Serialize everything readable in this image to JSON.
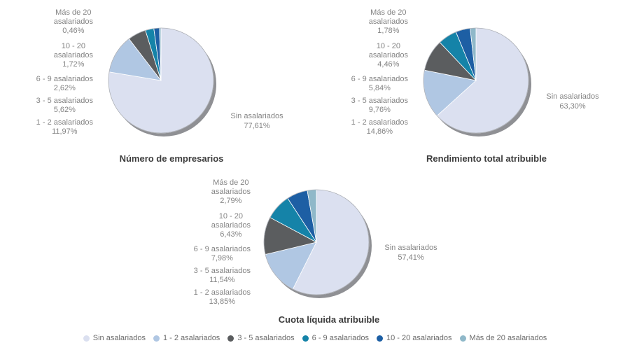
{
  "slice_colors": [
    "#dbe0f0",
    "#b0c7e3",
    "#5b5d5f",
    "#1583a8",
    "#1d5fa4",
    "#8fb8c9"
  ],
  "shadow_color": "#8f9094",
  "legend": {
    "position": "bottom-center",
    "items": [
      {
        "label": "Sin asalariados",
        "color": "#dbe0f0"
      },
      {
        "label": "1 - 2 asalariados",
        "color": "#b0c7e3"
      },
      {
        "label": "3 - 5 asalariados",
        "color": "#5b5d5f"
      },
      {
        "label": "6 - 9 asalariados",
        "color": "#1583a8"
      },
      {
        "label": "10 - 20 asalariados",
        "color": "#1d5fa4"
      },
      {
        "label": "Más de 20 asalariados",
        "color": "#8fb8c9"
      }
    ]
  },
  "chart_data": [
    {
      "type": "pie",
      "title": "Número de empresarios",
      "start_angle_deg": 0,
      "direction": "clockwise",
      "categories": [
        "Sin asalariados",
        "1 - 2 asalariados",
        "3 - 5 asalariados",
        "6 - 9 asalariados",
        "10 - 20 asalariados",
        "Más de 20 asalariados"
      ],
      "values": [
        77.61,
        11.97,
        5.62,
        2.62,
        1.72,
        0.46
      ],
      "labels": {
        "mas20": {
          "line1": "Más de 20",
          "line2": "asalariados",
          "value": "0,46%"
        },
        "g1020": {
          "line1": "10 - 20",
          "line2": "asalariados",
          "value": "1,72%"
        },
        "g69": {
          "line1": "6 - 9 asalariados",
          "value": "2,62%"
        },
        "g35": {
          "line1": "3 - 5 asalariados",
          "value": "5,62%"
        },
        "g12": {
          "line1": "1 - 2 asalariados",
          "value": "11,97%"
        },
        "sin": {
          "line1": "Sin asalariados",
          "value": "77,61%"
        }
      }
    },
    {
      "type": "pie",
      "title": "Rendimiento total atribuible",
      "start_angle_deg": 0,
      "direction": "clockwise",
      "categories": [
        "Sin asalariados",
        "1 - 2 asalariados",
        "3 - 5 asalariados",
        "6 - 9 asalariados",
        "10 - 20 asalariados",
        "Más de 20 asalariados"
      ],
      "values": [
        63.3,
        14.86,
        9.76,
        5.84,
        4.46,
        1.78
      ],
      "labels": {
        "mas20": {
          "line1": "Más de 20",
          "line2": "asalariados",
          "value": "1,78%"
        },
        "g1020": {
          "line1": "10 - 20",
          "line2": "asalariados",
          "value": "4,46%"
        },
        "g69": {
          "line1": "6 - 9 asalariados",
          "value": "5,84%"
        },
        "g35": {
          "line1": "3 - 5 asalariados",
          "value": "9,76%"
        },
        "g12": {
          "line1": "1 - 2 asalariados",
          "value": "14,86%"
        },
        "sin": {
          "line1": "Sin asalariados",
          "value": "63,30%"
        }
      }
    },
    {
      "type": "pie",
      "title": "Cuota líquida atribuible",
      "start_angle_deg": 0,
      "direction": "clockwise",
      "categories": [
        "Sin asalariados",
        "1 - 2 asalariados",
        "3 - 5 asalariados",
        "6 - 9 asalariados",
        "10 - 20 asalariados",
        "Más de 20 asalariados"
      ],
      "values": [
        57.41,
        13.85,
        11.54,
        7.98,
        6.43,
        2.79
      ],
      "labels": {
        "mas20": {
          "line1": "Más de 20",
          "line2": "asalariados",
          "value": "2,79%"
        },
        "g1020": {
          "line1": "10 - 20",
          "line2": "asalariados",
          "value": "6,43%"
        },
        "g69": {
          "line1": "6 - 9 asalariados",
          "value": "7,98%"
        },
        "g35": {
          "line1": "3 - 5 asalariados",
          "value": "11,54%"
        },
        "g12": {
          "line1": "1 - 2 asalariados",
          "value": "13,85%"
        },
        "sin": {
          "line1": "Sin asalariados",
          "value": "57,41%"
        }
      }
    }
  ]
}
